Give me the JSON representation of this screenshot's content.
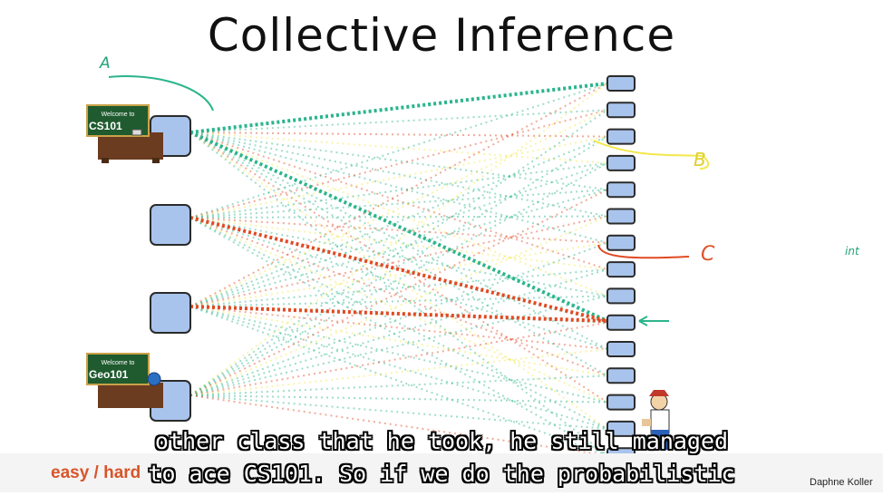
{
  "slide": {
    "title": "Collective Inference",
    "annotations": {
      "a": "A",
      "b": "B",
      "c": "C",
      "int": "int"
    },
    "course_boards": [
      {
        "line1": "Welcome to",
        "line2": "CS101"
      },
      {
        "line1": "Welcome to",
        "line2": "Geo101"
      }
    ],
    "bottom_left": "easy / hard",
    "credit": "Daphne Koller"
  },
  "subtitles": {
    "line1": "other class that he took, he still managed",
    "line2": "to ace CS101. So if we do the probabilistic"
  },
  "colors": {
    "teal": "#2bb58c",
    "red": "#e14a24",
    "yellow": "#f2e84a",
    "node_fill": "#a9c4ec",
    "node_stroke": "#2b2b2b"
  },
  "icons": [
    "desk-icon",
    "board-icon",
    "globe-icon",
    "person-icon",
    "arrow-icon"
  ]
}
